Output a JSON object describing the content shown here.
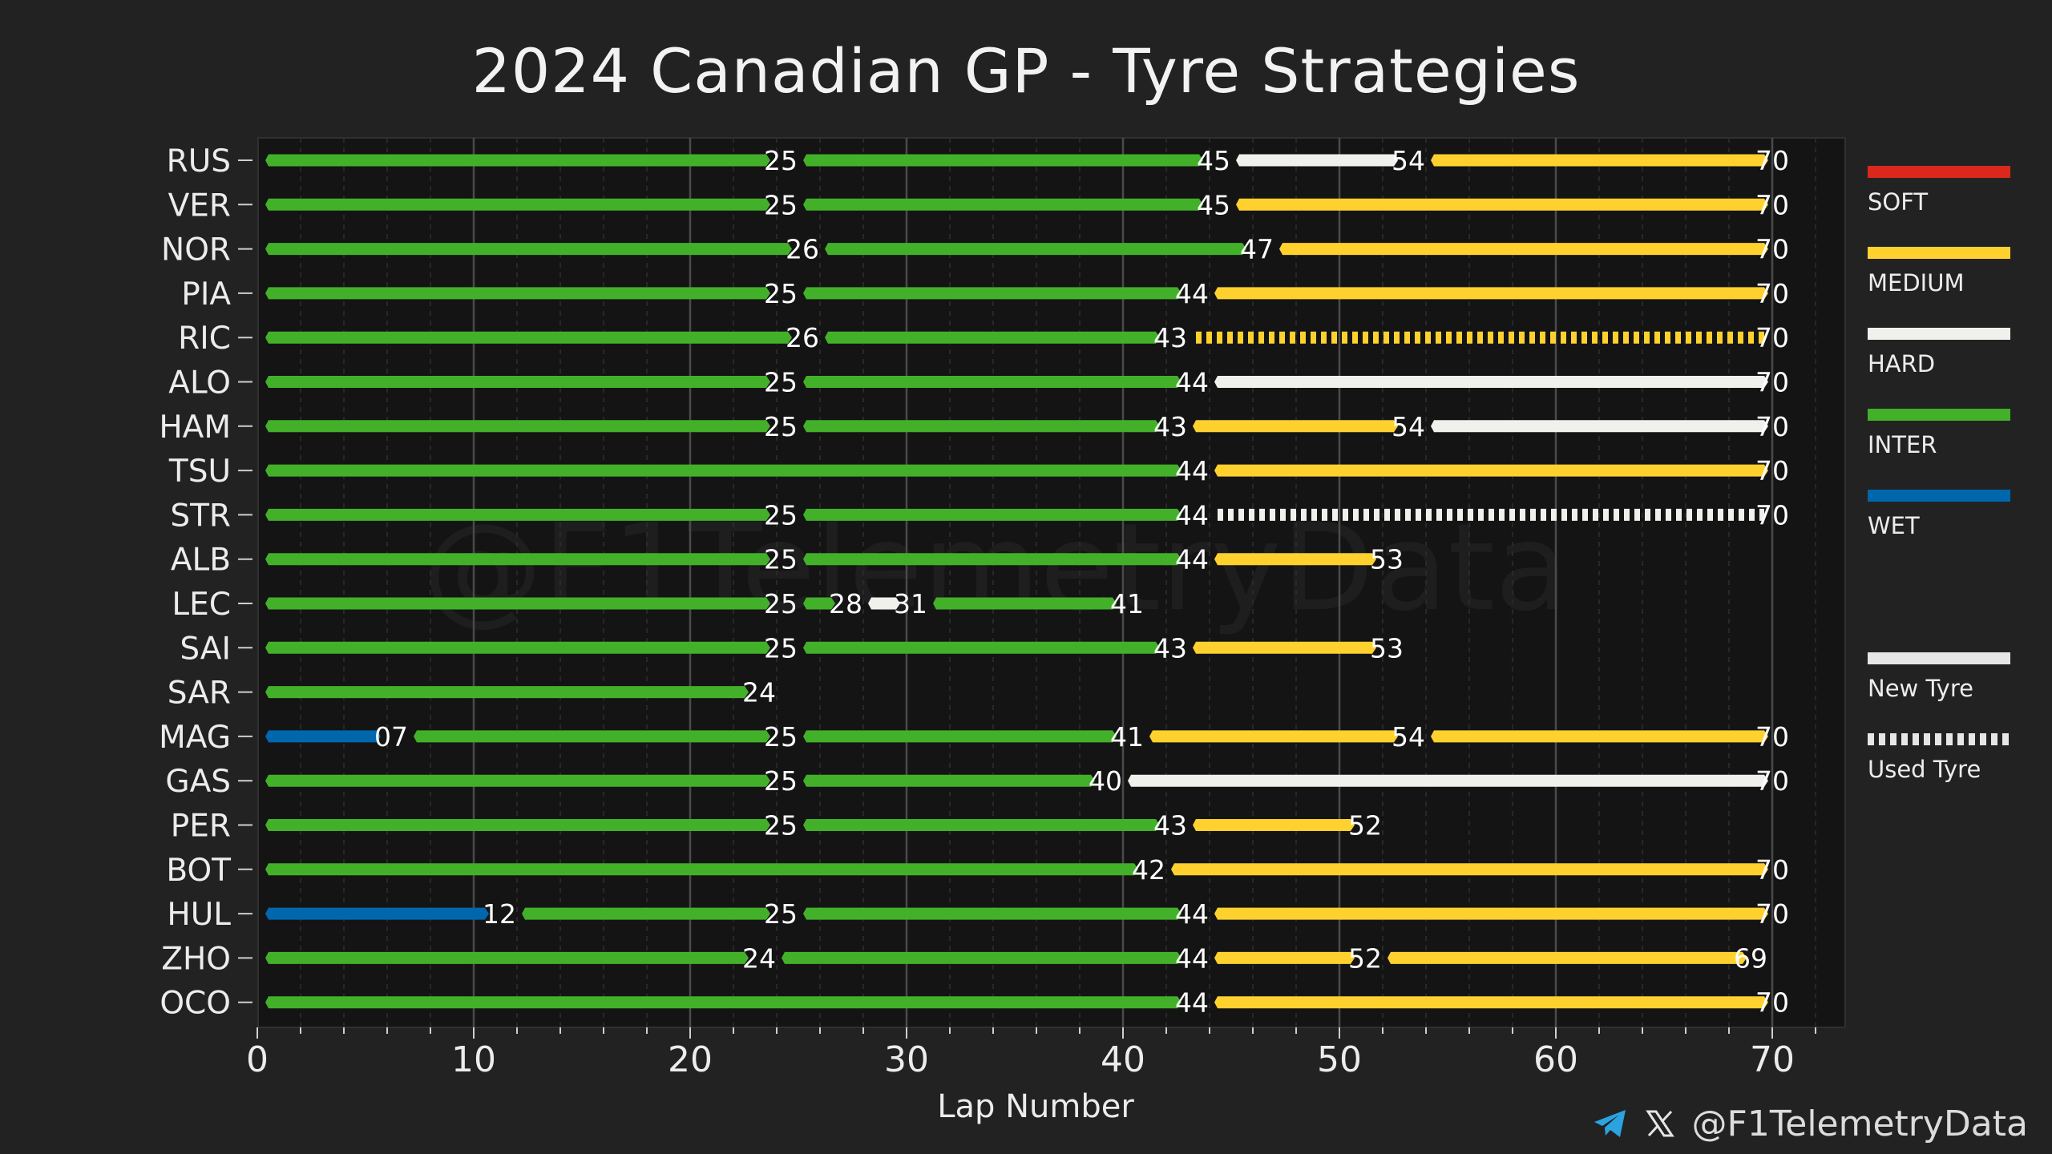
{
  "chart_data": {
    "type": "bar",
    "orientation": "horizontal-stacked",
    "title": "2024 Canadian GP - Tyre Strategies",
    "xlabel": "Lap Number",
    "xlim": [
      0,
      70
    ],
    "xticks": [
      0,
      10,
      20,
      30,
      40,
      50,
      60,
      70
    ],
    "watermark": "@F1TelemetryData",
    "compound_colors": {
      "SOFT": "#da291c",
      "MEDIUM": "#ffd12e",
      "HARD": "#f0f0ec",
      "INTER": "#43b02a",
      "WET": "#0067ad"
    },
    "drivers": [
      {
        "code": "RUS",
        "stints": [
          {
            "compound": "INTER",
            "start": 0,
            "end": 25,
            "new": true,
            "label": "25"
          },
          {
            "compound": "INTER",
            "start": 25,
            "end": 45,
            "new": true,
            "label": "45"
          },
          {
            "compound": "HARD",
            "start": 45,
            "end": 54,
            "new": true,
            "label": "54"
          },
          {
            "compound": "MEDIUM",
            "start": 54,
            "end": 70,
            "new": true,
            "label": "70"
          }
        ]
      },
      {
        "code": "VER",
        "stints": [
          {
            "compound": "INTER",
            "start": 0,
            "end": 25,
            "new": true,
            "label": "25"
          },
          {
            "compound": "INTER",
            "start": 25,
            "end": 45,
            "new": true,
            "label": "45"
          },
          {
            "compound": "MEDIUM",
            "start": 45,
            "end": 70,
            "new": true,
            "label": "70"
          }
        ]
      },
      {
        "code": "NOR",
        "stints": [
          {
            "compound": "INTER",
            "start": 0,
            "end": 26,
            "new": true,
            "label": "26"
          },
          {
            "compound": "INTER",
            "start": 26,
            "end": 47,
            "new": true,
            "label": "47"
          },
          {
            "compound": "MEDIUM",
            "start": 47,
            "end": 70,
            "new": true,
            "label": "70"
          }
        ]
      },
      {
        "code": "PIA",
        "stints": [
          {
            "compound": "INTER",
            "start": 0,
            "end": 25,
            "new": true,
            "label": "25"
          },
          {
            "compound": "INTER",
            "start": 25,
            "end": 44,
            "new": true,
            "label": "44"
          },
          {
            "compound": "MEDIUM",
            "start": 44,
            "end": 70,
            "new": true,
            "label": "70"
          }
        ]
      },
      {
        "code": "RIC",
        "stints": [
          {
            "compound": "INTER",
            "start": 0,
            "end": 26,
            "new": true,
            "label": "26"
          },
          {
            "compound": "INTER",
            "start": 26,
            "end": 43,
            "new": true,
            "label": "43"
          },
          {
            "compound": "MEDIUM",
            "start": 43,
            "end": 70,
            "new": false,
            "label": "70"
          }
        ]
      },
      {
        "code": "ALO",
        "stints": [
          {
            "compound": "INTER",
            "start": 0,
            "end": 25,
            "new": true,
            "label": "25"
          },
          {
            "compound": "INTER",
            "start": 25,
            "end": 44,
            "new": true,
            "label": "44"
          },
          {
            "compound": "HARD",
            "start": 44,
            "end": 70,
            "new": true,
            "label": "70"
          }
        ]
      },
      {
        "code": "HAM",
        "stints": [
          {
            "compound": "INTER",
            "start": 0,
            "end": 25,
            "new": true,
            "label": "25"
          },
          {
            "compound": "INTER",
            "start": 25,
            "end": 43,
            "new": true,
            "label": "43"
          },
          {
            "compound": "MEDIUM",
            "start": 43,
            "end": 54,
            "new": true,
            "label": "54"
          },
          {
            "compound": "HARD",
            "start": 54,
            "end": 70,
            "new": true,
            "label": "70"
          }
        ]
      },
      {
        "code": "TSU",
        "stints": [
          {
            "compound": "INTER",
            "start": 0,
            "end": 44,
            "new": true,
            "label": "44"
          },
          {
            "compound": "MEDIUM",
            "start": 44,
            "end": 70,
            "new": true,
            "label": "70"
          }
        ]
      },
      {
        "code": "STR",
        "stints": [
          {
            "compound": "INTER",
            "start": 0,
            "end": 25,
            "new": true,
            "label": "25"
          },
          {
            "compound": "INTER",
            "start": 25,
            "end": 44,
            "new": true,
            "label": "44"
          },
          {
            "compound": "HARD",
            "start": 44,
            "end": 70,
            "new": false,
            "label": "70"
          }
        ]
      },
      {
        "code": "ALB",
        "stints": [
          {
            "compound": "INTER",
            "start": 0,
            "end": 25,
            "new": true,
            "label": "25"
          },
          {
            "compound": "INTER",
            "start": 25,
            "end": 44,
            "new": true,
            "label": "44"
          },
          {
            "compound": "MEDIUM",
            "start": 44,
            "end": 53,
            "new": true,
            "label": "53"
          }
        ]
      },
      {
        "code": "LEC",
        "stints": [
          {
            "compound": "INTER",
            "start": 0,
            "end": 25,
            "new": true,
            "label": "25"
          },
          {
            "compound": "INTER",
            "start": 25,
            "end": 28,
            "new": true,
            "label": "28"
          },
          {
            "compound": "HARD",
            "start": 28,
            "end": 31,
            "new": true,
            "label": "31"
          },
          {
            "compound": "INTER",
            "start": 31,
            "end": 41,
            "new": true,
            "label": "41"
          }
        ]
      },
      {
        "code": "SAI",
        "stints": [
          {
            "compound": "INTER",
            "start": 0,
            "end": 25,
            "new": true,
            "label": "25"
          },
          {
            "compound": "INTER",
            "start": 25,
            "end": 43,
            "new": true,
            "label": "43"
          },
          {
            "compound": "MEDIUM",
            "start": 43,
            "end": 53,
            "new": true,
            "label": "53"
          }
        ]
      },
      {
        "code": "SAR",
        "stints": [
          {
            "compound": "INTER",
            "start": 0,
            "end": 24,
            "new": true,
            "label": "24"
          }
        ]
      },
      {
        "code": "MAG",
        "stints": [
          {
            "compound": "WET",
            "start": 0,
            "end": 7,
            "new": true,
            "label": "07"
          },
          {
            "compound": "INTER",
            "start": 7,
            "end": 25,
            "new": true,
            "label": "25"
          },
          {
            "compound": "INTER",
            "start": 25,
            "end": 41,
            "new": true,
            "label": "41"
          },
          {
            "compound": "MEDIUM",
            "start": 41,
            "end": 54,
            "new": true,
            "label": "54"
          },
          {
            "compound": "MEDIUM",
            "start": 54,
            "end": 70,
            "new": true,
            "label": "70"
          }
        ]
      },
      {
        "code": "GAS",
        "stints": [
          {
            "compound": "INTER",
            "start": 0,
            "end": 25,
            "new": true,
            "label": "25"
          },
          {
            "compound": "INTER",
            "start": 25,
            "end": 40,
            "new": true,
            "label": "40"
          },
          {
            "compound": "HARD",
            "start": 40,
            "end": 70,
            "new": true,
            "label": "70"
          }
        ]
      },
      {
        "code": "PER",
        "stints": [
          {
            "compound": "INTER",
            "start": 0,
            "end": 25,
            "new": true,
            "label": "25"
          },
          {
            "compound": "INTER",
            "start": 25,
            "end": 43,
            "new": true,
            "label": "43"
          },
          {
            "compound": "MEDIUM",
            "start": 43,
            "end": 52,
            "new": true,
            "label": "52"
          }
        ]
      },
      {
        "code": "BOT",
        "stints": [
          {
            "compound": "INTER",
            "start": 0,
            "end": 42,
            "new": true,
            "label": "42"
          },
          {
            "compound": "MEDIUM",
            "start": 42,
            "end": 70,
            "new": true,
            "label": "70"
          }
        ]
      },
      {
        "code": "HUL",
        "stints": [
          {
            "compound": "WET",
            "start": 0,
            "end": 12,
            "new": true,
            "label": "12"
          },
          {
            "compound": "INTER",
            "start": 12,
            "end": 25,
            "new": true,
            "label": "25"
          },
          {
            "compound": "INTER",
            "start": 25,
            "end": 44,
            "new": true,
            "label": "44"
          },
          {
            "compound": "MEDIUM",
            "start": 44,
            "end": 70,
            "new": true,
            "label": "70"
          }
        ]
      },
      {
        "code": "ZHO",
        "stints": [
          {
            "compound": "INTER",
            "start": 0,
            "end": 24,
            "new": true,
            "label": "24"
          },
          {
            "compound": "INTER",
            "start": 24,
            "end": 44,
            "new": true,
            "label": "44"
          },
          {
            "compound": "MEDIUM",
            "start": 44,
            "end": 52,
            "new": true,
            "label": "52"
          },
          {
            "compound": "MEDIUM",
            "start": 52,
            "end": 69,
            "new": true,
            "label": "69"
          }
        ]
      },
      {
        "code": "OCO",
        "stints": [
          {
            "compound": "INTER",
            "start": 0,
            "end": 44,
            "new": true,
            "label": "44"
          },
          {
            "compound": "MEDIUM",
            "start": 44,
            "end": 70,
            "new": true,
            "label": "70"
          }
        ]
      }
    ]
  },
  "legend": {
    "compounds": [
      {
        "label": "SOFT",
        "color": "#da291c"
      },
      {
        "label": "MEDIUM",
        "color": "#ffd12e"
      },
      {
        "label": "HARD",
        "color": "#f0f0ec"
      },
      {
        "label": "INTER",
        "color": "#43b02a"
      },
      {
        "label": "WET",
        "color": "#0067ad"
      }
    ],
    "new_tyre": "New Tyre",
    "used_tyre": "Used Tyre"
  },
  "footer": {
    "telegram_icon": "telegram-icon",
    "x_icon": "x-icon",
    "handle": "@F1TelemetryData"
  }
}
